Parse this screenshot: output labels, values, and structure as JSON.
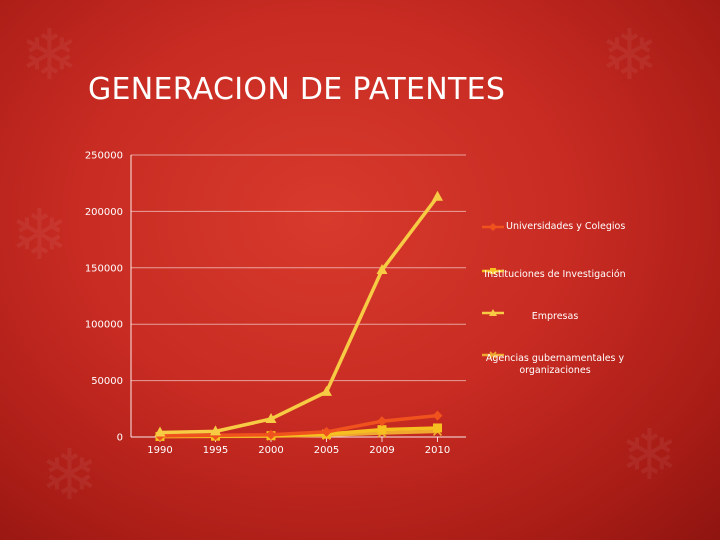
{
  "slide": {
    "title": "GENERACION DE PATENTES"
  },
  "colors": {
    "background": "#c72b22",
    "grid": "#ffffff"
  },
  "chart_data": {
    "type": "line",
    "title": "",
    "xlabel": "",
    "ylabel": "",
    "categories": [
      "1990",
      "1995",
      "2000",
      "2005",
      "2009",
      "2010"
    ],
    "ylim": [
      0,
      250000
    ],
    "yticks": [
      0,
      50000,
      100000,
      150000,
      200000,
      250000
    ],
    "grid": true,
    "legend_position": "right",
    "series": [
      {
        "name": "Universidades y Colegios",
        "marker": "diamond",
        "color": "#f0521e",
        "values": [
          1000,
          1500,
          2000,
          4500,
          14000,
          19000
        ]
      },
      {
        "name": "Instituciones de Investigación",
        "marker": "square",
        "color": "#f5c020",
        "values": [
          500,
          800,
          1200,
          2500,
          6500,
          8000
        ]
      },
      {
        "name": "Empresas",
        "marker": "triangle",
        "color": "#f7cb44",
        "values": [
          4000,
          5000,
          16000,
          40000,
          148000,
          213000
        ]
      },
      {
        "name": "Agencias gubernamentales y organizaciones",
        "marker": "x",
        "color": "#f0a830",
        "values": [
          300,
          500,
          800,
          1500,
          3500,
          5000
        ]
      }
    ]
  }
}
